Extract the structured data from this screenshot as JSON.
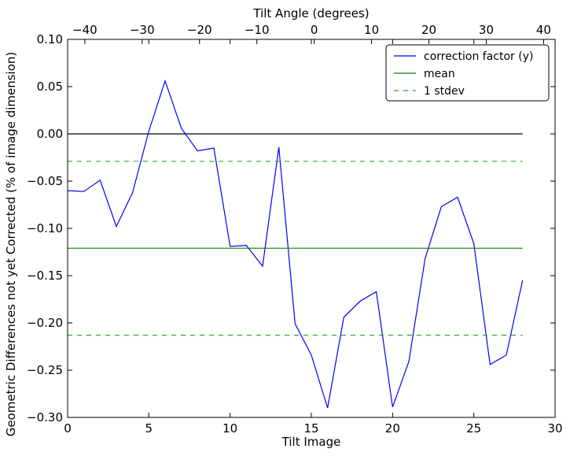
{
  "chart_data": {
    "type": "line",
    "xlabel": "Tilt Image",
    "ylabel": "Geometric Differences not yet Corrected (% of image dimension)",
    "top_xlabel": "Tilt Angle (degrees)",
    "xlim": [
      0,
      30
    ],
    "ylim": [
      -0.3,
      0.1
    ],
    "top_xlim": [
      -43,
      42
    ],
    "x_ticks": [
      0,
      5,
      10,
      15,
      20,
      25,
      30
    ],
    "x_tick_labels": [
      "0",
      "5",
      "10",
      "15",
      "20",
      "25",
      "30"
    ],
    "y_ticks": [
      0.1,
      0.05,
      0.0,
      -0.05,
      -0.1,
      -0.15,
      -0.2,
      -0.25,
      -0.3
    ],
    "y_tick_labels": [
      "0.10",
      "0.05",
      "0.00",
      "−0.05",
      "−0.10",
      "−0.15",
      "−0.20",
      "−0.25",
      "−0.30"
    ],
    "top_x_ticks": [
      -40,
      -30,
      -20,
      -10,
      0,
      10,
      20,
      30,
      40
    ],
    "top_x_tick_labels": [
      "−40",
      "−30",
      "−20",
      "−10",
      "0",
      "10",
      "20",
      "30",
      "40"
    ],
    "grid": false,
    "legend_position": "top-right",
    "zero_line": {
      "y": 0.0,
      "x_range": [
        0,
        28
      ],
      "color": "#000000"
    },
    "series": [
      {
        "name": "correction factor (y)",
        "color": "#0000ff",
        "style": "solid",
        "x": [
          0,
          1,
          2,
          3,
          4,
          5,
          6,
          7,
          8,
          9,
          10,
          11,
          12,
          13,
          14,
          15,
          16,
          17,
          18,
          19,
          20,
          21,
          22,
          23,
          24,
          25,
          26,
          27,
          28
        ],
        "values": [
          -0.06,
          -0.061,
          -0.049,
          -0.098,
          -0.062,
          0.003,
          0.056,
          0.006,
          -0.018,
          -0.015,
          -0.119,
          -0.118,
          -0.14,
          -0.014,
          -0.201,
          -0.234,
          -0.29,
          -0.194,
          -0.177,
          -0.167,
          -0.289,
          -0.241,
          -0.132,
          -0.077,
          -0.067,
          -0.116,
          -0.244,
          -0.234,
          -0.155
        ]
      },
      {
        "name": "mean",
        "color": "#008000",
        "style": "solid",
        "x": [
          0,
          28
        ],
        "values": [
          -0.121,
          -0.121
        ]
      },
      {
        "name": "1 stdev",
        "color": "#33aa33",
        "style": "dashed",
        "x": [
          0,
          28
        ],
        "values": [
          -0.029,
          -0.029
        ]
      },
      {
        "name": "",
        "color": "#33aa33",
        "style": "dashed",
        "x": [
          0,
          28
        ],
        "values": [
          -0.213,
          -0.213
        ]
      }
    ]
  }
}
